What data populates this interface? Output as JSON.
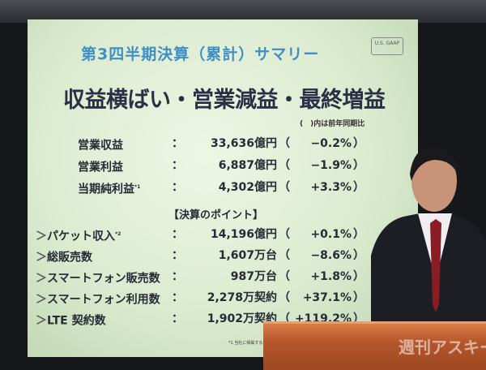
{
  "slide": {
    "title": "第3四半期決算（累計）サマリー",
    "gaap_badge": "U.S. GAAP",
    "headline": "収益横ばい・営業減益・最終増益",
    "note": "(　)内は前年同期比",
    "summary_rows": [
      {
        "label": "営業収益",
        "sup": "",
        "value": "33,636億円",
        "change": "−0.2%"
      },
      {
        "label": "営業利益",
        "sup": "",
        "value": "6,887億円",
        "change": "−1.9%"
      },
      {
        "label": "当期純利益",
        "sup": "*1",
        "value": "4,302億円",
        "change": "+3.3%"
      }
    ],
    "points_heading": "【決算のポイント】",
    "point_rows": [
      {
        "label": "パケット収入",
        "sup": "*2",
        "value": "14,196億円",
        "change": "+0.1%"
      },
      {
        "label": "総販売数",
        "sup": "",
        "value": "1,607万台",
        "change": "−8.6%"
      },
      {
        "label": "スマートフォン販売数",
        "sup": "",
        "value": "987万台",
        "change": "+1.8%"
      },
      {
        "label": "スマートフォン利用数",
        "sup": "",
        "value": "2,278万契約",
        "change": "+37.1%"
      },
      {
        "label": "LTE 契約数",
        "sup": "",
        "value": "1,902万契約",
        "change": "+119.2%"
      }
    ],
    "footnote": "*1 当社に帰属する…",
    "colors": {
      "title": "#3f8fc6",
      "text": "#262a36",
      "slide_bg": "#dcebd0"
    }
  },
  "watermark": "週刊アスキー"
}
